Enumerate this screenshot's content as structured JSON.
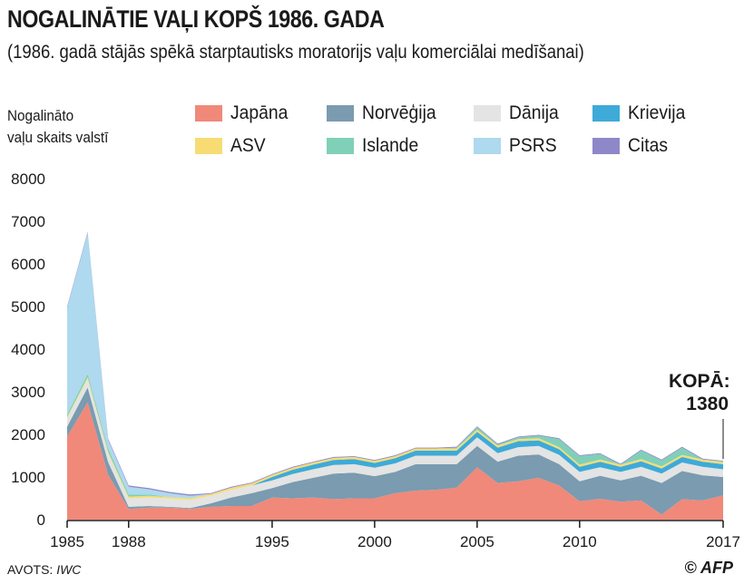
{
  "title": "NOGALINĀTIE VAĻI KOPŠ 1986. GADA",
  "subtitle": "(1986. gadā stājās spēkā starptautisks moratorijs vaļu komerciālai medīšanai)",
  "ylabel_lines": [
    "Nogalināto",
    "vaļu skaits valstī"
  ],
  "total_label": "KOPĀ:",
  "total_value": "1380",
  "source_prefix": "AVOTS: ",
  "source_name": "IWC",
  "credit": "© AFP",
  "chart_data": {
    "type": "area",
    "stacked": true,
    "x": [
      1985,
      1986,
      1987,
      1988,
      1989,
      1990,
      1991,
      1992,
      1993,
      1994,
      1995,
      1996,
      1997,
      1998,
      1999,
      2000,
      2001,
      2002,
      2003,
      2004,
      2005,
      2006,
      2007,
      2008,
      2009,
      2010,
      2011,
      2012,
      2013,
      2014,
      2015,
      2016,
      2017
    ],
    "x_ticks": [
      1985,
      1988,
      1995,
      2000,
      2005,
      2010,
      2017
    ],
    "ylim": [
      0,
      8000
    ],
    "y_ticks": [
      0,
      1000,
      2000,
      3000,
      4000,
      5000,
      6000,
      7000,
      8000
    ],
    "grid": false,
    "legend_position": "top",
    "series": [
      {
        "name": "Japāna",
        "color": "#f0897a",
        "values": [
          1950,
          2750,
          1050,
          250,
          280,
          280,
          250,
          300,
          320,
          320,
          520,
          500,
          520,
          480,
          500,
          500,
          620,
          680,
          700,
          750,
          1230,
          860,
          900,
          980,
          800,
          430,
          490,
          420,
          450,
          120,
          480,
          450,
          570
        ]
      },
      {
        "name": "Norvēģija",
        "color": "#7a9bb0",
        "values": [
          230,
          350,
          300,
          50,
          40,
          20,
          20,
          80,
          200,
          300,
          220,
          380,
          460,
          600,
          600,
          520,
          500,
          620,
          600,
          550,
          500,
          500,
          600,
          550,
          500,
          470,
          540,
          500,
          580,
          740,
          660,
          590,
          430
        ]
      },
      {
        "name": "Dānija",
        "color": "#e3e4e3",
        "values": [
          200,
          200,
          200,
          200,
          200,
          190,
          190,
          180,
          180,
          180,
          180,
          190,
          200,
          200,
          200,
          200,
          200,
          200,
          200,
          200,
          200,
          200,
          200,
          200,
          220,
          220,
          200,
          200,
          210,
          220,
          200,
          200,
          180
        ]
      },
      {
        "name": "Krievija",
        "color": "#3eaad8",
        "values": [
          0,
          0,
          0,
          0,
          0,
          0,
          0,
          0,
          0,
          0,
          80,
          100,
          110,
          120,
          120,
          110,
          120,
          120,
          120,
          120,
          130,
          130,
          140,
          130,
          130,
          120,
          130,
          120,
          130,
          120,
          130,
          120,
          120
        ]
      },
      {
        "name": "ASV",
        "color": "#f7dc74",
        "values": [
          30,
          40,
          40,
          40,
          40,
          40,
          40,
          40,
          50,
          50,
          50,
          50,
          50,
          50,
          50,
          50,
          50,
          50,
          50,
          50,
          50,
          50,
          50,
          50,
          50,
          50,
          50,
          50,
          50,
          50,
          50,
          50,
          50
        ]
      },
      {
        "name": "Islande",
        "color": "#80d0b8",
        "values": [
          60,
          80,
          80,
          50,
          30,
          0,
          0,
          0,
          0,
          0,
          0,
          0,
          0,
          0,
          0,
          0,
          0,
          0,
          0,
          20,
          60,
          20,
          40,
          60,
          190,
          200,
          130,
          0,
          200,
          140,
          170,
          0,
          20
        ]
      },
      {
        "name": "PSRS",
        "color": "#aed9ee",
        "values": [
          2500,
          3300,
          200,
          180,
          120,
          90,
          60,
          0,
          0,
          0,
          0,
          0,
          0,
          0,
          0,
          0,
          0,
          0,
          0,
          0,
          0,
          0,
          0,
          0,
          0,
          0,
          0,
          0,
          0,
          0,
          0,
          0,
          0
        ]
      },
      {
        "name": "Citas",
        "color": "#8f88c8",
        "values": [
          30,
          30,
          30,
          30,
          30,
          30,
          30,
          20,
          20,
          20,
          20,
          20,
          20,
          20,
          20,
          20,
          20,
          20,
          20,
          20,
          20,
          20,
          20,
          20,
          20,
          20,
          20,
          20,
          20,
          20,
          20,
          20,
          10
        ]
      }
    ]
  }
}
